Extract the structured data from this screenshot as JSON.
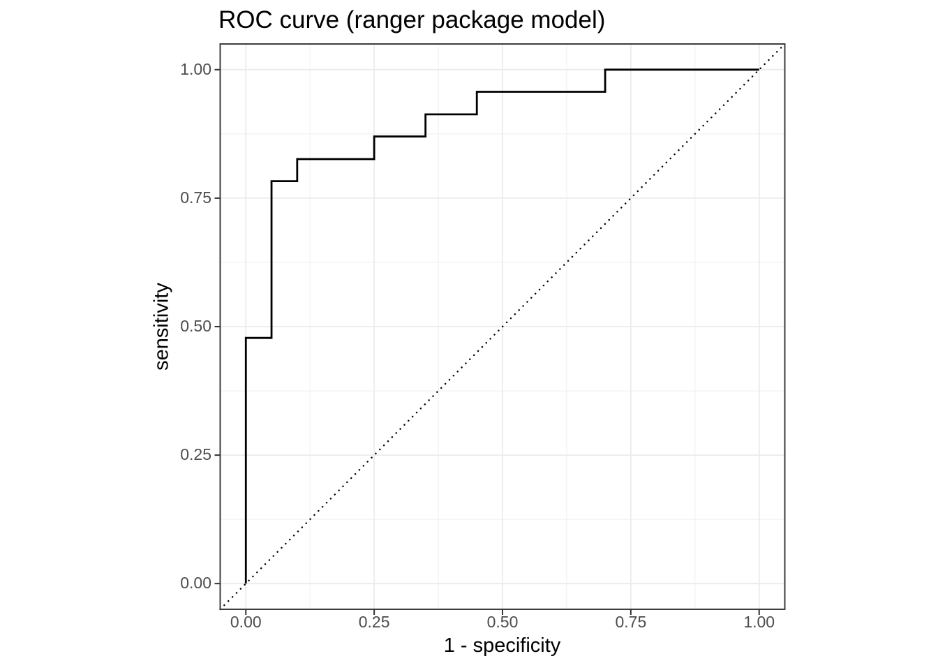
{
  "chart_data": {
    "type": "line",
    "subtype": "roc_step_curve",
    "title": "ROC curve (ranger package model)",
    "xlabel": "1 - specificity",
    "ylabel": "sensitivity",
    "xlim": [
      0,
      1
    ],
    "ylim": [
      0,
      1
    ],
    "axis_expansion": 0.05,
    "grid": true,
    "legend": "none",
    "x_ticks": [
      {
        "value": 0.0,
        "label": "0.00"
      },
      {
        "value": 0.25,
        "label": "0.25"
      },
      {
        "value": 0.5,
        "label": "0.50"
      },
      {
        "value": 0.75,
        "label": "0.75"
      },
      {
        "value": 1.0,
        "label": "1.00"
      }
    ],
    "y_ticks": [
      {
        "value": 0.0,
        "label": "0.00"
      },
      {
        "value": 0.25,
        "label": "0.25"
      },
      {
        "value": 0.5,
        "label": "0.50"
      },
      {
        "value": 0.75,
        "label": "0.75"
      },
      {
        "value": 1.0,
        "label": "1.00"
      }
    ],
    "x_minor_breaks": [
      0.125,
      0.375,
      0.625,
      0.875
    ],
    "y_minor_breaks": [
      0.125,
      0.375,
      0.625,
      0.875
    ],
    "series": [
      {
        "name": "ROC step curve",
        "linetype": "solid",
        "color": "#000000",
        "width": 2.8,
        "points": [
          [
            0.0,
            0.0
          ],
          [
            0.0,
            0.478
          ],
          [
            0.05,
            0.478
          ],
          [
            0.05,
            0.783
          ],
          [
            0.1,
            0.783
          ],
          [
            0.1,
            0.826
          ],
          [
            0.25,
            0.826
          ],
          [
            0.25,
            0.87
          ],
          [
            0.35,
            0.87
          ],
          [
            0.35,
            0.913
          ],
          [
            0.45,
            0.913
          ],
          [
            0.45,
            0.957
          ],
          [
            0.7,
            0.957
          ],
          [
            0.7,
            1.0
          ],
          [
            1.0,
            1.0
          ]
        ]
      },
      {
        "name": "chance reference line (y = x)",
        "linetype": "dotted",
        "color": "#000000",
        "width": 2.4,
        "spans_full_panel": true,
        "points": [
          [
            0,
            0
          ],
          [
            1,
            1
          ]
        ]
      }
    ],
    "colors": {
      "background": "#ffffff",
      "panel_background": "#ffffff",
      "grid_major": "#ebebeb",
      "grid_minor": "#f1f1f1",
      "panel_border": "#3d3d3d",
      "tick_mark": "#333333",
      "tick_label": "#4d4d4d",
      "text": "#000000"
    }
  }
}
